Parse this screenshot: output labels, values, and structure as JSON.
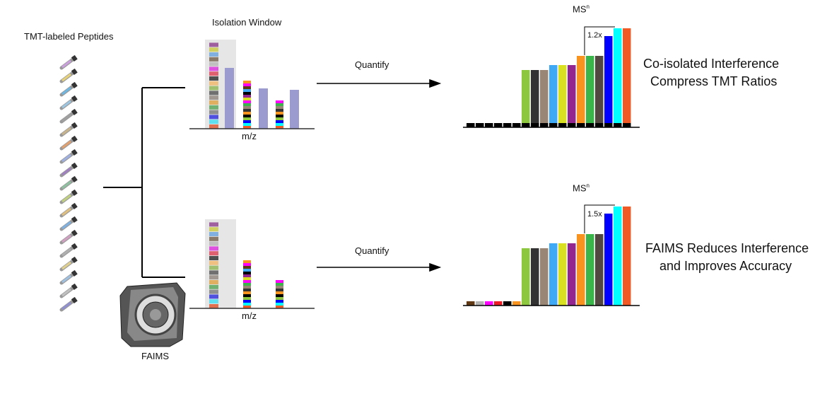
{
  "labels": {
    "peptides": "TMT-labeled Peptides",
    "isolation_window": "Isolation Window",
    "mz_top": "m/z",
    "mz_bottom": "m/z",
    "quantify_top": "Quantify",
    "quantify_bottom": "Quantify",
    "msn_top": "MS",
    "msn_top_sup": "n",
    "msn_bottom": "MS",
    "msn_bottom_sup": "n",
    "fold_top": "1.2x",
    "fold_bottom": "1.5x",
    "result_top_1": "Co-isolated Interference",
    "result_top_2": "Compress TMT Ratios",
    "result_bottom_1": "FAIMS Reduces Interference",
    "result_bottom_2": "and Improves Accuracy",
    "faims": "FAIMS"
  },
  "chart_data": [
    {
      "type": "bar",
      "title": "MSn (co-isolated interference)",
      "colors": [
        "#000",
        "#000",
        "#000",
        "#000",
        "#000",
        "#000",
        "#8dc63f",
        "#333333",
        "#998675",
        "#3fa9f5",
        "#d9e021",
        "#93278f",
        "#f7931e",
        "#39b54a",
        "#534741",
        "#0000ff",
        "#00ffff",
        "#f15a24"
      ],
      "values": [
        2,
        2,
        2,
        2,
        2,
        2,
        81,
        81,
        81,
        88,
        88,
        88,
        101,
        101,
        101,
        129,
        140,
        140
      ],
      "annotation": "1.2x"
    },
    {
      "type": "bar",
      "title": "MSn (FAIMS)",
      "colors": [
        "#603813",
        "#b3b3b3",
        "#ff00ff",
        "#ed1c24",
        "#000000",
        "#f7931e",
        "#8dc63f",
        "#333333",
        "#998675",
        "#3fa9f5",
        "#d9e021",
        "#93278f",
        "#f7931e",
        "#39b54a",
        "#534741",
        "#0000ff",
        "#00ffff",
        "#f15a24"
      ],
      "values": [
        6,
        6,
        6,
        6,
        6,
        6,
        81,
        81,
        81,
        88,
        88,
        88,
        101,
        101,
        101,
        130,
        140,
        140
      ],
      "annotation": "1.5x"
    }
  ]
}
